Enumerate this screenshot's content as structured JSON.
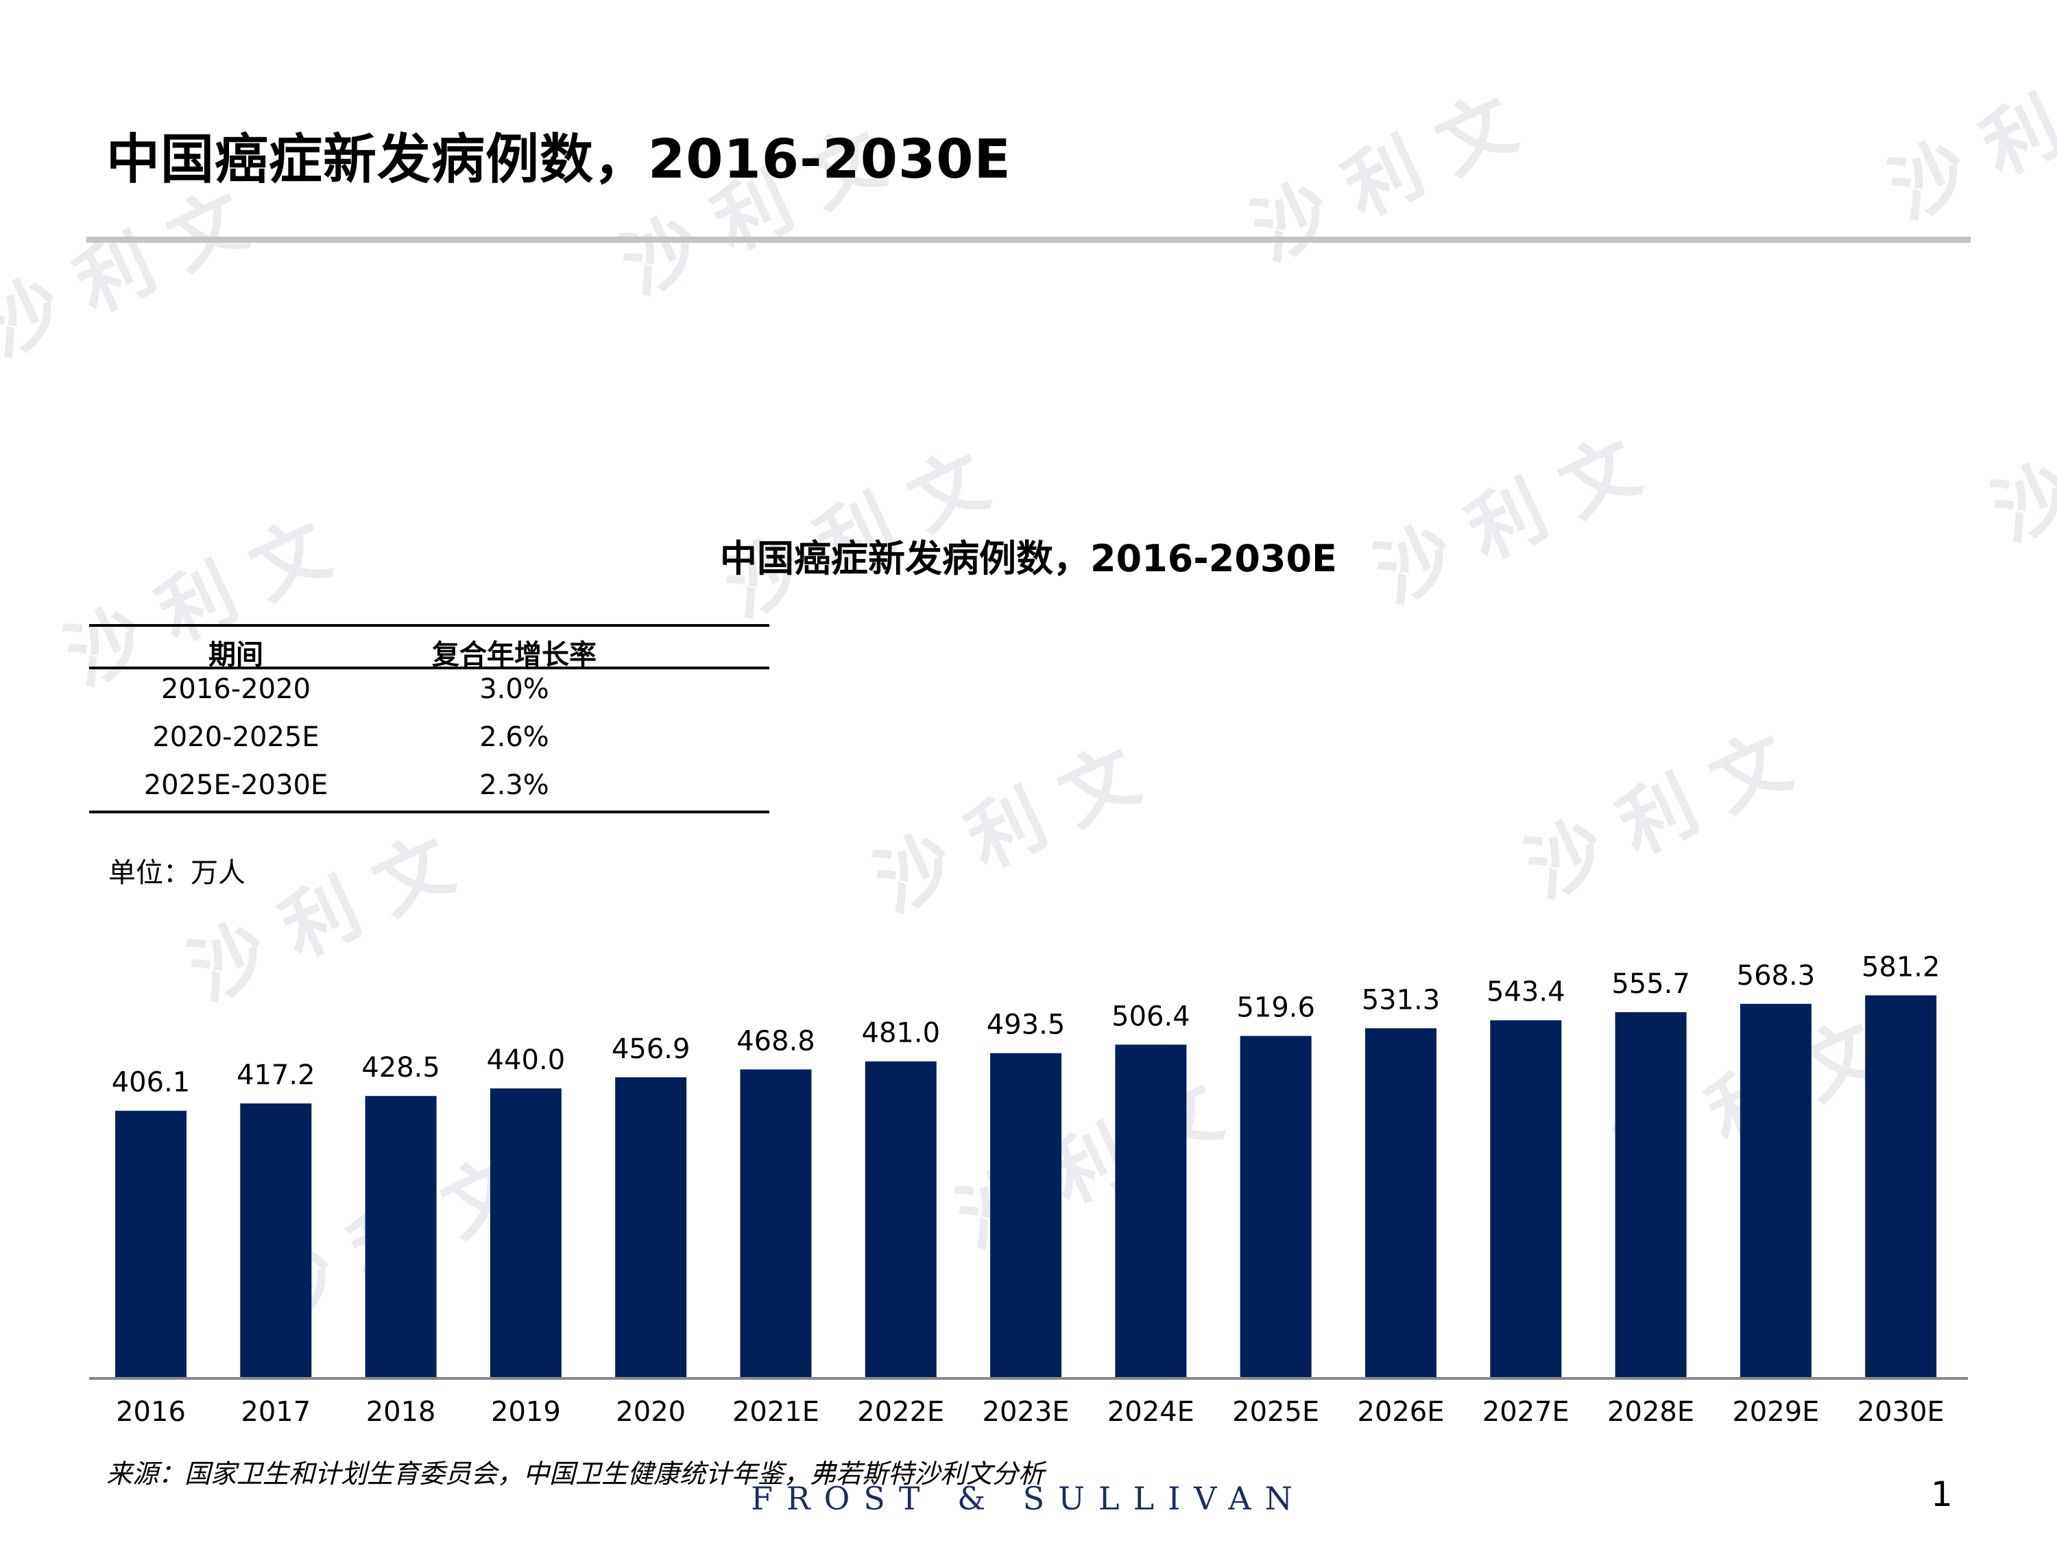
{
  "slide": {
    "title": "中国癌症新发病例数，2016-2030E",
    "unit": "单位：万人",
    "source": "来源：国家卫生和计划生育委员会，中国卫生健康统计年鉴，弗若斯特沙利文分析",
    "brand_footer": "FROST & SULLIVAN",
    "page_number": "1",
    "watermark_text": "沙 利 文"
  },
  "cagr_table": {
    "headers": [
      "期间",
      "复合年增长率"
    ],
    "rows": [
      {
        "period": "2016-2020",
        "rate": "3.0%"
      },
      {
        "period": "2020-2025E",
        "rate": "2.6%"
      },
      {
        "period": "2025E-2030E",
        "rate": "2.3%"
      }
    ]
  },
  "colors": {
    "bar": "#00205b",
    "axis": "#888888",
    "title_rule": "#c4c4c4"
  },
  "chart_data": {
    "type": "bar",
    "title": "中国癌症新发病例数，2016-2030E",
    "xlabel": "",
    "ylabel": "",
    "categories": [
      "2016",
      "2017",
      "2018",
      "2019",
      "2020",
      "2021E",
      "2022E",
      "2023E",
      "2024E",
      "2025E",
      "2026E",
      "2027E",
      "2028E",
      "2029E",
      "2030E"
    ],
    "values": [
      406.1,
      417.2,
      428.5,
      440.0,
      456.9,
      468.8,
      481.0,
      493.5,
      506.4,
      519.6,
      531.3,
      543.4,
      555.7,
      568.3,
      581.2
    ],
    "value_labels": [
      "406.1",
      "417.2",
      "428.5",
      "440.0",
      "456.9",
      "468.8",
      "481.0",
      "493.5",
      "506.4",
      "519.6",
      "531.3",
      "543.4",
      "555.7",
      "568.3",
      "581.2"
    ],
    "ylim": [
      0,
      600
    ],
    "grid": false,
    "legend": "none"
  }
}
